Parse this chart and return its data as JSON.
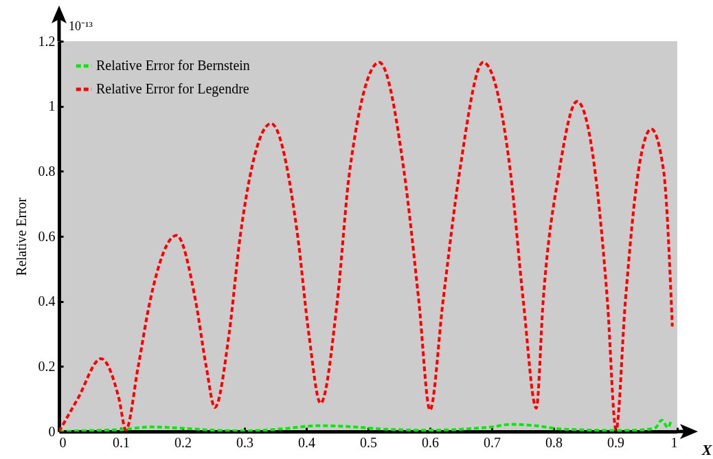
{
  "chart_data": {
    "type": "line",
    "xlabel": "X",
    "ylabel": "Relative Error",
    "annotations": [
      "10⁻¹³"
    ],
    "xlim": [
      0,
      1
    ],
    "xticks": [
      0,
      0.1,
      0.2,
      0.3,
      0.4,
      0.5,
      0.6,
      0.7,
      0.8,
      0.9,
      1
    ],
    "ylim": [
      0,
      1.2
    ],
    "yticks": [
      0,
      0.2,
      0.4,
      0.6,
      0.8,
      1,
      1.2
    ],
    "grid": false,
    "legend": "top left",
    "line_style": "dashed",
    "marker": "none",
    "series": [
      {
        "name": "Relative Error for Bernstein",
        "color": "#00ee00",
        "x": [
          0,
          0.05,
          0.1,
          0.15,
          0.2,
          0.25,
          0.3,
          0.36,
          0.42,
          0.47,
          0.52,
          0.6,
          0.66,
          0.7,
          0.73,
          0.77,
          0.81,
          0.85,
          0.9,
          0.95,
          0.965,
          0.975,
          0.985,
          0.99
        ],
        "values": [
          0,
          0.003,
          0.006,
          0.014,
          0.01,
          0.004,
          0.002,
          0.008,
          0.018,
          0.015,
          0.008,
          0.004,
          0.008,
          0.014,
          0.022,
          0.018,
          0.008,
          0.005,
          0.003,
          0.006,
          0.012,
          0.035,
          0.012,
          0.035
        ]
      },
      {
        "name": "Relative Error for Legendre",
        "color": "#ff0000",
        "x": [
          0,
          0.03,
          0.068,
          0.097,
          0.108,
          0.128,
          0.147,
          0.19,
          0.221,
          0.238,
          0.252,
          0.275,
          0.293,
          0.343,
          0.386,
          0.404,
          0.423,
          0.45,
          0.47,
          0.518,
          0.558,
          0.582,
          0.6,
          0.621,
          0.648,
          0.686,
          0.73,
          0.751,
          0.772,
          0.783,
          0.809,
          0.838,
          0.867,
          0.887,
          0.901,
          0.916,
          0.937,
          0.958,
          0.978,
          0.992
        ],
        "values": [
          0,
          0.1,
          0.224,
          0.1,
          0.005,
          0.2,
          0.4,
          0.603,
          0.4,
          0.2,
          0.074,
          0.3,
          0.6,
          0.947,
          0.6,
          0.3,
          0.087,
          0.4,
          0.8,
          1.135,
          0.8,
          0.4,
          0.066,
          0.4,
          0.8,
          1.135,
          0.8,
          0.4,
          0.072,
          0.4,
          0.8,
          1.015,
          0.8,
          0.4,
          0.005,
          0.4,
          0.8,
          0.93,
          0.8,
          0.323
        ]
      }
    ]
  }
}
